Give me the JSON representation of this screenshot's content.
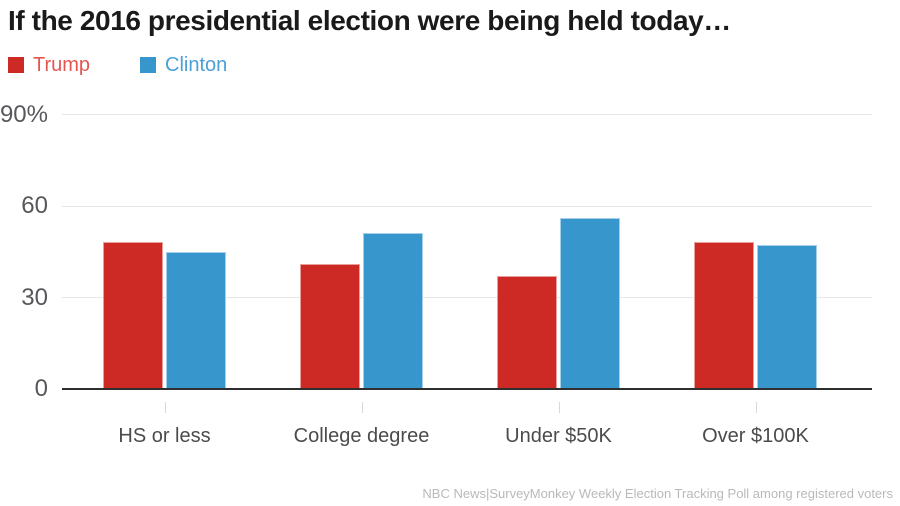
{
  "title": "If the 2016 presidential election were being held today…",
  "legend": {
    "items": [
      {
        "label": "Trump",
        "color": "#cd2a25",
        "label_color": "#e4564f"
      },
      {
        "label": "Clinton",
        "color": "#3796cc",
        "label_color": "#4aa0d8"
      }
    ]
  },
  "chart_data": {
    "type": "bar",
    "title": "If the 2016 presidential election were being held today…",
    "categories": [
      "HS or less",
      "College degree",
      "Under $50K",
      "Over $100K"
    ],
    "series": [
      {
        "name": "Trump",
        "color": "#cd2a25",
        "values": [
          48,
          41,
          37,
          48
        ]
      },
      {
        "name": "Clinton",
        "color": "#3796cc",
        "values": [
          45,
          51,
          56,
          47
        ]
      }
    ],
    "xlabel": "",
    "ylabel": "",
    "ylim": [
      0,
      90
    ],
    "yticks": [
      {
        "value": 90,
        "label": "90%"
      },
      {
        "value": 60,
        "label": "60"
      },
      {
        "value": 30,
        "label": "30"
      },
      {
        "value": 0,
        "label": "0"
      }
    ],
    "grid": "horizontal",
    "legend_position": "top-left"
  },
  "footer": {
    "source": "NBC News|SurveyMonkey Weekly Election Tracking Poll among registered voters"
  }
}
